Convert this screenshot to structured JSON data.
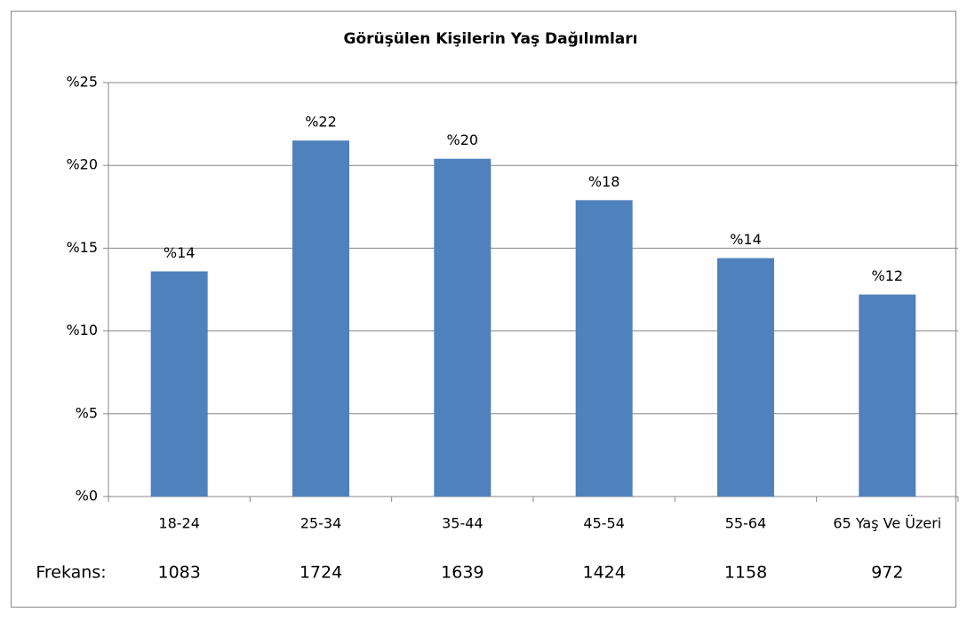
{
  "chart_data": {
    "type": "bar",
    "title": "Görüşülen Kişilerin Yaş Dağılımları",
    "categories": [
      "18-24",
      "25-34",
      "35-44",
      "45-54",
      "55-64",
      "65 Yaş Ve Üzeri"
    ],
    "values": [
      13.6,
      21.5,
      20.4,
      17.9,
      14.4,
      12.2
    ],
    "value_labels": [
      "%14",
      "%22",
      "%20",
      "%18",
      "%14",
      "%12"
    ],
    "color": "#4f81bd",
    "ylim": [
      0,
      25
    ],
    "yticks": [
      {
        "value": 0,
        "label": "%0"
      },
      {
        "value": 5,
        "label": "%5"
      },
      {
        "value": 10,
        "label": "%10"
      },
      {
        "value": 15,
        "label": "%15"
      },
      {
        "value": 20,
        "label": "%20"
      },
      {
        "value": 25,
        "label": "%25"
      }
    ],
    "grid": true,
    "frequency": {
      "label": "Frekans:",
      "values": [
        1083,
        1724,
        1639,
        1424,
        1158,
        972
      ]
    }
  }
}
